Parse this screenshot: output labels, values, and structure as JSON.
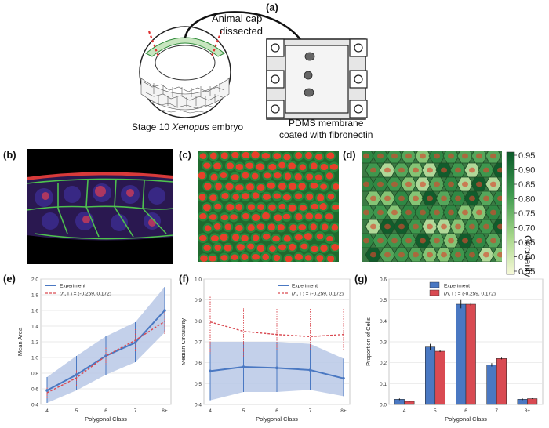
{
  "panels": {
    "a": "(a)",
    "b": "(b)",
    "c": "(c)",
    "d": "(d)",
    "e": "(e)",
    "f": "(f)",
    "g": "(g)"
  },
  "schematic": {
    "arrow_label_line1": "Animal cap",
    "arrow_label_line2": "dissected",
    "embryo_caption_prefix": "Stage 10 ",
    "embryo_caption_italic": "Xenopus",
    "embryo_caption_suffix": " embryo",
    "membrane_caption_line1": "PDMS membrane",
    "membrane_caption_line2": "coated with fibronectin"
  },
  "colorbar": {
    "label": "Circularity",
    "ticks": [
      "0.95",
      "0.90",
      "0.85",
      "0.80",
      "0.75",
      "0.70",
      "0.65",
      "0.60",
      "0.55"
    ]
  },
  "colors": {
    "experiment": "#4a78c2",
    "model": "#d94a52",
    "band": "#b8c8e6",
    "green": "#2f9a45",
    "red_nucleus": "#e8402a"
  },
  "chart_data": [
    {
      "panel": "e",
      "type": "line",
      "xlabel": "Polygonal Class",
      "ylabel": "Mean Area",
      "categories": [
        "4",
        "5",
        "6",
        "7",
        "8+"
      ],
      "ylim": [
        0.4,
        2.0
      ],
      "yticks": [
        "0.4",
        "0.6",
        "0.8",
        "1.0",
        "1.2",
        "1.4",
        "1.6",
        "1.8",
        "2.0"
      ],
      "legend": [
        "Experiment",
        "(Λ, Γ) = (-0.259, 0.172)"
      ],
      "legend_position": "top-left",
      "series": [
        {
          "name": "Experiment",
          "values": [
            0.58,
            0.78,
            1.02,
            1.19,
            1.6
          ],
          "err_low": [
            0.42,
            0.58,
            0.78,
            0.94,
            1.32
          ],
          "err_high": [
            0.75,
            1.02,
            1.27,
            1.45,
            1.9
          ]
        },
        {
          "name": "(Λ, Γ) = (-0.259, 0.172)",
          "values": [
            0.55,
            0.74,
            1.02,
            1.22,
            1.46
          ],
          "err_low": [
            0.48,
            0.64,
            0.9,
            1.08,
            1.3
          ],
          "err_high": [
            0.62,
            0.84,
            1.14,
            1.36,
            1.62
          ]
        }
      ]
    },
    {
      "panel": "f",
      "type": "line",
      "xlabel": "Polygonal Class",
      "ylabel": "Median Circularity",
      "categories": [
        "4",
        "5",
        "6",
        "7",
        "8+"
      ],
      "ylim": [
        0.4,
        1.0
      ],
      "yticks": [
        "0.4",
        "0.5",
        "0.6",
        "0.7",
        "0.8",
        "0.9",
        "1.0"
      ],
      "legend": [
        "Experiment",
        "(Λ, Γ) = (-0.259, 0.172)"
      ],
      "legend_position": "top-right",
      "series": [
        {
          "name": "Experiment",
          "values": [
            0.56,
            0.58,
            0.575,
            0.565,
            0.525
          ],
          "err_low": [
            0.42,
            0.46,
            0.46,
            0.47,
            0.44
          ],
          "err_high": [
            0.7,
            0.7,
            0.7,
            0.69,
            0.62
          ]
        },
        {
          "name": "(Λ, Γ) = (-0.259, 0.172)",
          "values": [
            0.795,
            0.75,
            0.735,
            0.725,
            0.735
          ],
          "err_low": [
            0.64,
            0.63,
            0.66,
            0.66,
            0.66
          ],
          "err_high": [
            0.92,
            0.86,
            0.86,
            0.86,
            0.86
          ]
        }
      ]
    },
    {
      "panel": "g",
      "type": "bar",
      "xlabel": "Polygonal Class",
      "ylabel": "Proportion of Cells",
      "categories": [
        "4",
        "5",
        "6",
        "7",
        "8+"
      ],
      "ylim": [
        0.0,
        0.6
      ],
      "yticks": [
        "0.0",
        "0.1",
        "0.2",
        "0.3",
        "0.4",
        "0.5",
        "0.6"
      ],
      "legend": [
        "Experiment",
        "(Λ, Γ) = (-0.259, 0.172)"
      ],
      "legend_position": "top-center",
      "series": [
        {
          "name": "Experiment",
          "values": [
            0.025,
            0.275,
            0.48,
            0.19,
            0.025
          ],
          "err": [
            0.004,
            0.015,
            0.02,
            0.008,
            0.004
          ]
        },
        {
          "name": "(Λ, Γ) = (-0.259, 0.172)",
          "values": [
            0.015,
            0.255,
            0.48,
            0.22,
            0.028
          ],
          "err": [
            0.002,
            0.004,
            0.008,
            0.004,
            0.002
          ]
        }
      ]
    }
  ]
}
